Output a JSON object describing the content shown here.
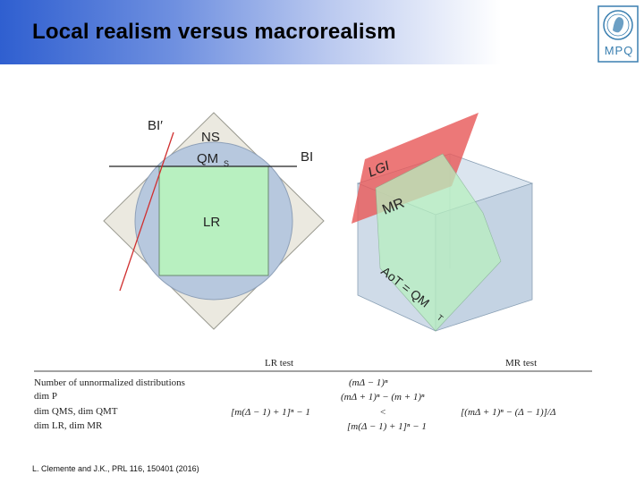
{
  "slide": {
    "title": "Local realism versus macrorealism",
    "logo_text": "MPQ",
    "citation": "L. Clemente and J.K., PRL 116, 150401 (2016)"
  },
  "left_diagram": {
    "label_bi_prime": "BI′",
    "label_ns": "NS",
    "label_qm": "QM",
    "label_qm_sub": "S",
    "label_bi": "BI",
    "label_lr": "LR"
  },
  "right_diagram": {
    "label_lgi": "LGI",
    "label_mr": "MR",
    "label_aot": "AoT = QM",
    "label_aot_sub": "T"
  },
  "table": {
    "col_lr": "LR test",
    "col_mr": "MR test",
    "row_unnormalized": "Number of unnormalized distributions",
    "row_dim_p": "dim P",
    "row_dim_qm": "dim QMS, dim QMT",
    "row_dim_lr": "dim LR, dim MR",
    "cell_mr_unnorm": "(mΔ − 1)ⁿ",
    "cell_mr_dimp": "(mΔ + 1)ⁿ − (m + 1)ⁿ",
    "cell_lr_dimqm": "[m(Δ − 1) + 1]ⁿ − 1",
    "cell_lt": "<",
    "cell_mr_dimqm": "[(mΔ + 1)ⁿ − (Δ − 1)]/Δ",
    "cell_lr_dimlr": "[m(Δ − 1) + 1]ⁿ − 1"
  },
  "colors": {
    "lr_green": "#b8f0c0",
    "qm_blue": "#b7c8de",
    "ns_beige": "#ebe9e0",
    "lgi_red": "#e85a5a",
    "bi_prime_red": "#d03030"
  }
}
